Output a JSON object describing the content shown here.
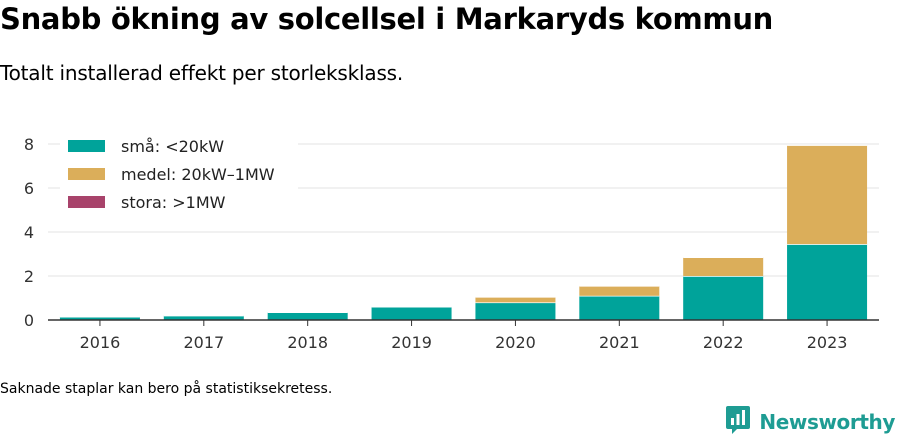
{
  "title": "Snabb ökning av solcellsel i Markaryds kommun",
  "subtitle": "Totalt installerad effekt per storleksklass.",
  "footnote": "Saknade staplar kan bero på statistiksekretess.",
  "brand": {
    "name": "Newsworthy",
    "icon": "newsworthy-logo-icon",
    "color": "#1e9c93"
  },
  "chart_data": {
    "type": "bar",
    "stacked": true,
    "categories": [
      "2016",
      "2017",
      "2018",
      "2019",
      "2020",
      "2021",
      "2022",
      "2023"
    ],
    "series": [
      {
        "name": "små: <20kW",
        "color": "#00a39a",
        "values": [
          0.15,
          0.2,
          0.35,
          0.6,
          0.8,
          1.1,
          2.0,
          3.45
        ]
      },
      {
        "name": "medel: 20kW–1MW",
        "color": "#dbae5a",
        "values": [
          0,
          0,
          0,
          0,
          0.25,
          0.45,
          0.85,
          4.5
        ]
      },
      {
        "name": "stora: >1MW",
        "color": "#a8436b",
        "values": [
          0,
          0,
          0,
          0,
          0,
          0,
          0,
          0
        ]
      }
    ],
    "yticks": [
      0,
      2,
      4,
      6,
      8
    ],
    "ylim": [
      0,
      8.3
    ],
    "xlabel": "",
    "ylabel": "",
    "grid": true,
    "legend_position": "top-left"
  }
}
